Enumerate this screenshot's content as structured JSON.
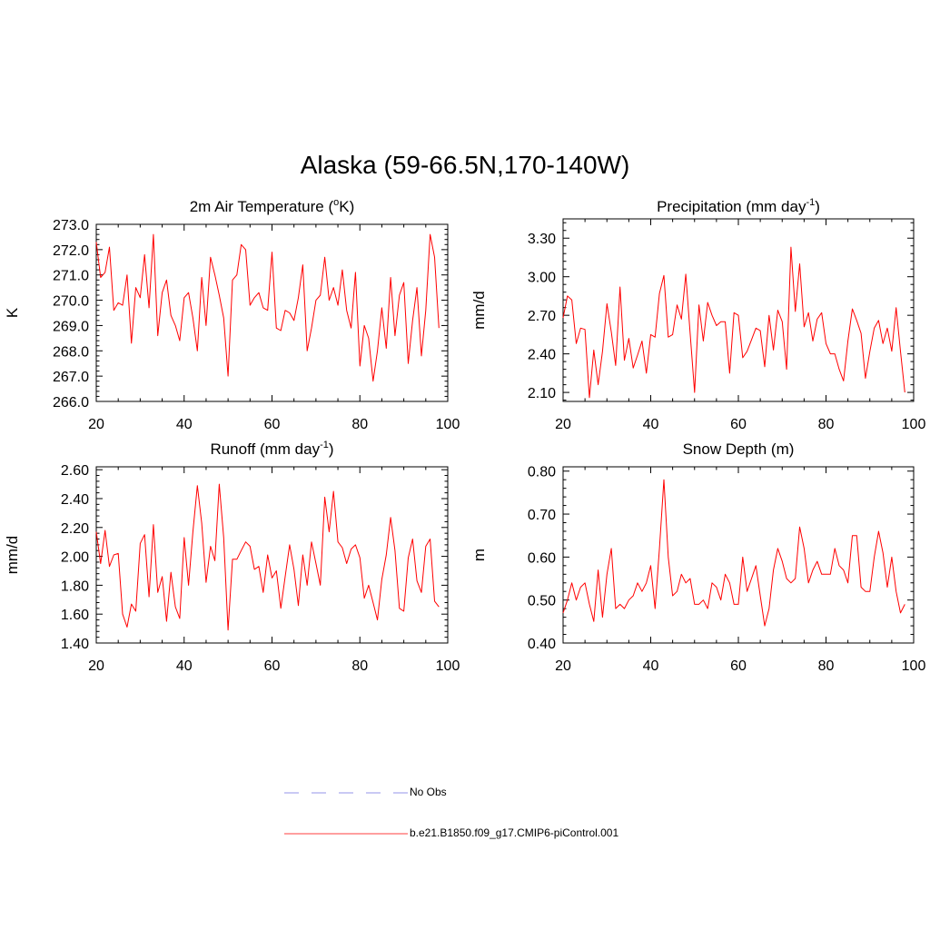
{
  "page_title": "Alaska (59-66.5N,170-140W)",
  "legend": [
    {
      "label": "No Obs",
      "color": "#aaaaee",
      "style": "dashed"
    },
    {
      "label": "b.e21.B1850.f09_g17.CMIP6-piControl.001",
      "color": "#ff0000",
      "style": "solid"
    }
  ],
  "chart_data": [
    {
      "type": "line",
      "title": "2m Air Temperature (°K)",
      "title_parts": {
        "pre": "2m Air Temperature (",
        "sup": "o",
        "post": "K)"
      },
      "ylabel": "K",
      "xlim": [
        20,
        100
      ],
      "ylim": [
        266.0,
        273.0
      ],
      "yticks": [
        266.0,
        267.0,
        268.0,
        269.0,
        270.0,
        271.0,
        272.0,
        273.0
      ],
      "ytick_labels": [
        "266.0",
        "267.0",
        "268.0",
        "269.0",
        "270.0",
        "271.0",
        "272.0",
        "273.0"
      ],
      "xticks": [
        20,
        40,
        60,
        80,
        100
      ],
      "xtick_labels": [
        "20",
        "40",
        "60",
        "80",
        "100"
      ],
      "series": [
        {
          "name": "b.e21.B1850.f09_g17.CMIP6-piControl.001",
          "color": "#ff0000",
          "x": [
            20,
            21,
            22,
            23,
            24,
            25,
            26,
            27,
            28,
            29,
            30,
            31,
            32,
            33,
            34,
            35,
            36,
            37,
            38,
            39,
            40,
            41,
            42,
            43,
            44,
            45,
            46,
            47,
            48,
            49,
            50,
            51,
            52,
            53,
            54,
            55,
            56,
            57,
            58,
            59,
            60,
            61,
            62,
            63,
            64,
            65,
            66,
            67,
            68,
            69,
            70,
            71,
            72,
            73,
            74,
            75,
            76,
            77,
            78,
            79,
            80,
            81,
            82,
            83,
            84,
            85,
            86,
            87,
            88,
            89,
            90,
            91,
            92,
            93,
            94,
            95,
            96,
            97,
            98
          ],
          "values": [
            272.3,
            270.9,
            271.1,
            272.1,
            269.6,
            269.9,
            269.8,
            271.0,
            268.3,
            270.5,
            270.1,
            271.8,
            269.7,
            272.6,
            268.6,
            270.3,
            270.8,
            269.4,
            269.0,
            268.4,
            270.1,
            270.3,
            269.3,
            268.0,
            270.9,
            269.0,
            271.7,
            271.0,
            270.2,
            269.3,
            267.0,
            270.8,
            271.0,
            272.2,
            272.0,
            269.8,
            270.1,
            270.3,
            269.7,
            269.6,
            271.9,
            268.9,
            268.8,
            269.6,
            269.5,
            269.2,
            270.1,
            271.4,
            268.0,
            268.9,
            270.0,
            270.2,
            271.7,
            270.0,
            270.5,
            269.8,
            271.2,
            269.6,
            268.9,
            271.1,
            267.4,
            269.0,
            268.5,
            266.8,
            268.0,
            269.7,
            268.1,
            270.9,
            268.6,
            270.2,
            270.7,
            267.5,
            269.2,
            270.5,
            267.8,
            269.6,
            272.6,
            271.7,
            268.9
          ]
        }
      ]
    },
    {
      "type": "line",
      "title": "Precipitation (mm day-1)",
      "title_parts": {
        "pre": "Precipitation (mm day",
        "sup": "-1",
        "post": ")"
      },
      "ylabel": "mm/d",
      "xlim": [
        20,
        100
      ],
      "ylim": [
        2.03,
        3.45
      ],
      "yticks": [
        2.1,
        2.4,
        2.7,
        3.0,
        3.3
      ],
      "ytick_labels": [
        "2.10",
        "2.40",
        "2.70",
        "3.00",
        "3.30"
      ],
      "xticks": [
        20,
        40,
        60,
        80,
        100
      ],
      "xtick_labels": [
        "20",
        "40",
        "60",
        "80",
        "100"
      ],
      "series": [
        {
          "name": "b.e21.B1850.f09_g17.CMIP6-piControl.001",
          "color": "#ff0000",
          "x": [
            20,
            21,
            22,
            23,
            24,
            25,
            26,
            27,
            28,
            29,
            30,
            31,
            32,
            33,
            34,
            35,
            36,
            37,
            38,
            39,
            40,
            41,
            42,
            43,
            44,
            45,
            46,
            47,
            48,
            49,
            50,
            51,
            52,
            53,
            54,
            55,
            56,
            57,
            58,
            59,
            60,
            61,
            62,
            63,
            64,
            65,
            66,
            67,
            68,
            69,
            70,
            71,
            72,
            73,
            74,
            75,
            76,
            77,
            78,
            79,
            80,
            81,
            82,
            83,
            84,
            85,
            86,
            87,
            88,
            89,
            90,
            91,
            92,
            93,
            94,
            95,
            96,
            97,
            98
          ],
          "values": [
            2.68,
            2.85,
            2.82,
            2.48,
            2.6,
            2.59,
            2.06,
            2.43,
            2.16,
            2.42,
            2.79,
            2.57,
            2.31,
            2.92,
            2.35,
            2.52,
            2.29,
            2.39,
            2.5,
            2.25,
            2.55,
            2.53,
            2.87,
            3.01,
            2.53,
            2.55,
            2.78,
            2.67,
            3.02,
            2.56,
            2.1,
            2.78,
            2.5,
            2.8,
            2.7,
            2.62,
            2.65,
            2.65,
            2.25,
            2.72,
            2.7,
            2.37,
            2.42,
            2.51,
            2.6,
            2.58,
            2.3,
            2.7,
            2.43,
            2.74,
            2.65,
            2.28,
            3.23,
            2.73,
            3.1,
            2.61,
            2.72,
            2.5,
            2.67,
            2.72,
            2.48,
            2.4,
            2.4,
            2.28,
            2.19,
            2.5,
            2.75,
            2.66,
            2.56,
            2.21,
            2.42,
            2.6,
            2.66,
            2.48,
            2.6,
            2.42,
            2.76,
            2.42,
            2.1
          ]
        }
      ]
    },
    {
      "type": "line",
      "title": "Runoff (mm day-1)",
      "title_parts": {
        "pre": "Runoff (mm day",
        "sup": "-1",
        "post": ")"
      },
      "ylabel": "mm/d",
      "xlim": [
        20,
        100
      ],
      "ylim": [
        1.4,
        2.62
      ],
      "yticks": [
        1.4,
        1.6,
        1.8,
        2.0,
        2.2,
        2.4,
        2.6
      ],
      "ytick_labels": [
        "1.40",
        "1.60",
        "1.80",
        "2.00",
        "2.20",
        "2.40",
        "2.60"
      ],
      "xticks": [
        20,
        40,
        60,
        80,
        100
      ],
      "xtick_labels": [
        "20",
        "40",
        "60",
        "80",
        "100"
      ],
      "series": [
        {
          "name": "b.e21.B1850.f09_g17.CMIP6-piControl.001",
          "color": "#ff0000",
          "x": [
            20,
            21,
            22,
            23,
            24,
            25,
            26,
            27,
            28,
            29,
            30,
            31,
            32,
            33,
            34,
            35,
            36,
            37,
            38,
            39,
            40,
            41,
            42,
            43,
            44,
            45,
            46,
            47,
            48,
            49,
            50,
            51,
            52,
            53,
            54,
            55,
            56,
            57,
            58,
            59,
            60,
            61,
            62,
            63,
            64,
            65,
            66,
            67,
            68,
            69,
            70,
            71,
            72,
            73,
            74,
            75,
            76,
            77,
            78,
            79,
            80,
            81,
            82,
            83,
            84,
            85,
            86,
            87,
            88,
            89,
            90,
            91,
            92,
            93,
            94,
            95,
            96,
            97,
            98
          ],
          "values": [
            2.17,
            1.95,
            2.18,
            1.93,
            2.01,
            2.02,
            1.6,
            1.51,
            1.67,
            1.62,
            2.09,
            2.15,
            1.72,
            2.22,
            1.75,
            1.86,
            1.55,
            1.89,
            1.65,
            1.57,
            2.13,
            1.8,
            2.17,
            2.49,
            2.23,
            1.82,
            2.07,
            1.97,
            2.5,
            2.13,
            1.49,
            1.98,
            1.98,
            2.04,
            2.1,
            2.07,
            1.91,
            1.93,
            1.75,
            2.01,
            1.85,
            1.9,
            1.64,
            1.86,
            2.08,
            1.91,
            1.66,
            2.01,
            1.8,
            2.1,
            1.95,
            1.8,
            2.41,
            2.17,
            2.45,
            2.1,
            2.06,
            1.95,
            2.05,
            2.08,
            1.99,
            1.71,
            1.8,
            1.68,
            1.56,
            1.84,
            2.01,
            2.27,
            2.04,
            1.64,
            1.62,
            1.99,
            2.12,
            1.83,
            1.75,
            2.07,
            2.12,
            1.69,
            1.65
          ]
        }
      ]
    },
    {
      "type": "line",
      "title": "Snow Depth (m)",
      "title_parts": {
        "pre": "Snow Depth (m)",
        "sup": "",
        "post": ""
      },
      "ylabel": "m",
      "xlim": [
        20,
        100
      ],
      "ylim": [
        0.4,
        0.81
      ],
      "yticks": [
        0.4,
        0.5,
        0.6,
        0.7,
        0.8
      ],
      "ytick_labels": [
        "0.40",
        "0.50",
        "0.60",
        "0.70",
        "0.80"
      ],
      "xticks": [
        20,
        40,
        60,
        80,
        100
      ],
      "xtick_labels": [
        "20",
        "40",
        "60",
        "80",
        "100"
      ],
      "series": [
        {
          "name": "b.e21.B1850.f09_g17.CMIP6-piControl.001",
          "color": "#ff0000",
          "x": [
            20,
            21,
            22,
            23,
            24,
            25,
            26,
            27,
            28,
            29,
            30,
            31,
            32,
            33,
            34,
            35,
            36,
            37,
            38,
            39,
            40,
            41,
            42,
            43,
            44,
            45,
            46,
            47,
            48,
            49,
            50,
            51,
            52,
            53,
            54,
            55,
            56,
            57,
            58,
            59,
            60,
            61,
            62,
            63,
            64,
            65,
            66,
            67,
            68,
            69,
            70,
            71,
            72,
            73,
            74,
            75,
            76,
            77,
            78,
            79,
            80,
            81,
            82,
            83,
            84,
            85,
            86,
            87,
            88,
            89,
            90,
            91,
            92,
            93,
            94,
            95,
            96,
            97,
            98
          ],
          "values": [
            0.47,
            0.5,
            0.54,
            0.5,
            0.53,
            0.54,
            0.49,
            0.45,
            0.57,
            0.46,
            0.56,
            0.62,
            0.48,
            0.49,
            0.48,
            0.5,
            0.51,
            0.54,
            0.52,
            0.54,
            0.58,
            0.48,
            0.62,
            0.78,
            0.6,
            0.51,
            0.52,
            0.56,
            0.54,
            0.55,
            0.49,
            0.49,
            0.5,
            0.48,
            0.54,
            0.53,
            0.5,
            0.56,
            0.54,
            0.49,
            0.49,
            0.6,
            0.52,
            0.55,
            0.58,
            0.51,
            0.44,
            0.48,
            0.57,
            0.62,
            0.59,
            0.55,
            0.54,
            0.55,
            0.67,
            0.62,
            0.54,
            0.57,
            0.59,
            0.56,
            0.56,
            0.56,
            0.62,
            0.58,
            0.57,
            0.54,
            0.65,
            0.65,
            0.53,
            0.52,
            0.52,
            0.6,
            0.66,
            0.61,
            0.53,
            0.6,
            0.52,
            0.47,
            0.49
          ]
        }
      ]
    }
  ]
}
